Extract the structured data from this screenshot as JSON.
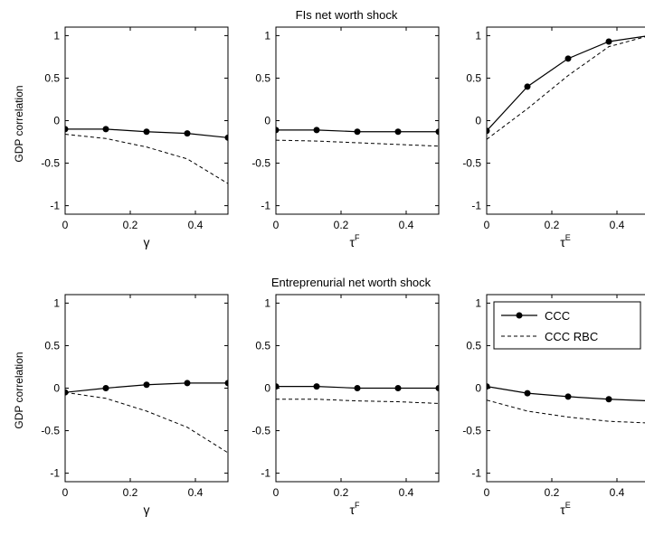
{
  "chart_data": {
    "type": "line",
    "row_titles": [
      "FIs net worth shock",
      "Entreprenurial net worth shock"
    ],
    "ylabel": "GDP correlation",
    "ylim": [
      -1.1,
      1.1
    ],
    "yticks": [
      1,
      0.5,
      0,
      -0.5,
      -1
    ],
    "ytick_labels": [
      "1",
      "0.5",
      "0",
      "-0.5",
      "-1"
    ],
    "xlim": [
      0,
      0.5
    ],
    "xticks": [
      0,
      0.2,
      0.4
    ],
    "xtick_labels": [
      "0",
      "0.2",
      "0.4"
    ],
    "legend": [
      {
        "name": "CCC",
        "style": "solid-dot"
      },
      {
        "name": "CCC RBC",
        "style": "dashed"
      }
    ],
    "panels": [
      {
        "id": "fi-gamma",
        "row": 0,
        "col": 0,
        "xlabel": {
          "base": "γ",
          "sup": ""
        },
        "x": [
          0,
          0.125,
          0.25,
          0.375,
          0.5
        ],
        "series": [
          {
            "name": "CCC",
            "values": [
              -0.1,
              -0.1,
              -0.13,
              -0.15,
              -0.2
            ]
          },
          {
            "name": "CCC RBC",
            "values": [
              -0.16,
              -0.21,
              -0.31,
              -0.45,
              -0.74
            ]
          }
        ]
      },
      {
        "id": "fi-tauF",
        "row": 0,
        "col": 1,
        "xlabel": {
          "base": "τ",
          "sup": "F"
        },
        "x": [
          0,
          0.125,
          0.25,
          0.375,
          0.5
        ],
        "series": [
          {
            "name": "CCC",
            "values": [
              -0.11,
              -0.11,
              -0.13,
              -0.13,
              -0.13
            ]
          },
          {
            "name": "CCC RBC",
            "values": [
              -0.23,
              -0.24,
              -0.26,
              -0.28,
              -0.3
            ]
          }
        ]
      },
      {
        "id": "fi-tauE",
        "row": 0,
        "col": 2,
        "xlabel": {
          "base": "τ",
          "sup": "E"
        },
        "x": [
          0,
          0.125,
          0.25,
          0.375,
          0.5
        ],
        "series": [
          {
            "name": "CCC",
            "values": [
              -0.12,
              0.4,
              0.73,
              0.93,
              1.0
            ]
          },
          {
            "name": "CCC RBC",
            "values": [
              -0.22,
              0.14,
              0.53,
              0.87,
              1.0
            ]
          }
        ]
      },
      {
        "id": "en-gamma",
        "row": 1,
        "col": 0,
        "xlabel": {
          "base": "γ",
          "sup": ""
        },
        "x": [
          0,
          0.125,
          0.25,
          0.375,
          0.5
        ],
        "series": [
          {
            "name": "CCC",
            "values": [
              -0.05,
              0.0,
              0.04,
              0.06,
              0.06
            ]
          },
          {
            "name": "CCC RBC",
            "values": [
              -0.05,
              -0.12,
              -0.27,
              -0.46,
              -0.76
            ]
          }
        ]
      },
      {
        "id": "en-tauF",
        "row": 1,
        "col": 1,
        "xlabel": {
          "base": "τ",
          "sup": "F"
        },
        "x": [
          0,
          0.125,
          0.25,
          0.375,
          0.5
        ],
        "series": [
          {
            "name": "CCC",
            "values": [
              0.02,
              0.02,
              0.0,
              0.0,
              0.0
            ]
          },
          {
            "name": "CCC RBC",
            "values": [
              -0.13,
              -0.13,
              -0.15,
              -0.16,
              -0.18
            ]
          }
        ]
      },
      {
        "id": "en-tauE",
        "row": 1,
        "col": 2,
        "xlabel": {
          "base": "τ",
          "sup": "E"
        },
        "x": [
          0,
          0.125,
          0.25,
          0.375,
          0.5
        ],
        "series": [
          {
            "name": "CCC",
            "values": [
              0.02,
              -0.06,
              -0.1,
              -0.13,
              -0.15
            ]
          },
          {
            "name": "CCC RBC",
            "values": [
              -0.14,
              -0.27,
              -0.34,
              -0.39,
              -0.41
            ]
          }
        ]
      }
    ]
  }
}
